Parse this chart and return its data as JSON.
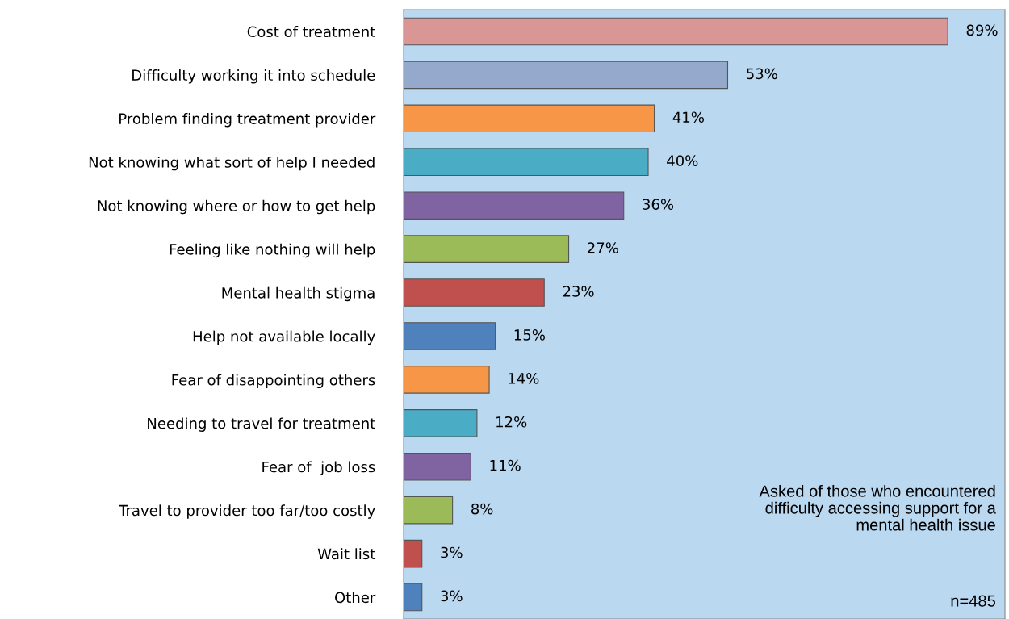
{
  "chart_data": {
    "type": "bar",
    "orientation": "horizontal",
    "tick_labels": "y",
    "grid": false,
    "legend": false,
    "categories": [
      "Cost of treatment",
      "Difficulty working it into schedule",
      "Problem finding treatment provider",
      "Not knowing what sort of help I needed",
      "Not knowing where or how to get help",
      "Feeling like nothing will help",
      "Mental health stigma",
      "Help not available locally",
      "Fear of disappointing others",
      "Needing to travel for treatment",
      "Fear of  job loss",
      "Travel to provider too far/too costly",
      "Wait list",
      "Other"
    ],
    "values": [
      89,
      53,
      41,
      40,
      36,
      27,
      23,
      15,
      14,
      12,
      11,
      8,
      3,
      3
    ],
    "value_labels": [
      "89%",
      "53%",
      "41%",
      "40%",
      "36%",
      "27%",
      "23%",
      "15%",
      "14%",
      "12%",
      "11%",
      "8%",
      "3%",
      "3%"
    ],
    "colors": [
      "#d99694",
      "#95a9cc",
      "#f79646",
      "#4bacc6",
      "#8064a2",
      "#9bbb59",
      "#c0504d",
      "#4f81bd",
      "#f79646",
      "#4bacc6",
      "#8064a2",
      "#9bbb59",
      "#c0504d",
      "#4f81bd"
    ],
    "annotations": [
      "Asked of those who encountered\ndifficulty accessing support for a\nmental health issue",
      "n=485"
    ]
  }
}
